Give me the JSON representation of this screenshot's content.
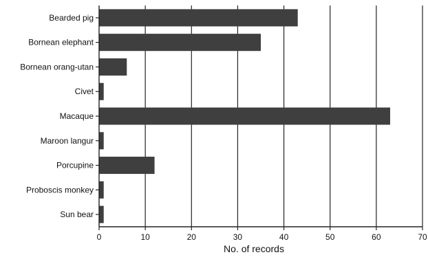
{
  "chart_data": {
    "type": "bar",
    "orientation": "horizontal",
    "categories": [
      "Bearded pig",
      "Bornean elephant",
      "Bornean orang-utan",
      "Civet",
      "Macaque",
      "Maroon langur",
      "Porcupine",
      "Proboscis monkey",
      "Sun bear"
    ],
    "values": [
      43,
      35,
      6,
      1,
      63,
      1,
      12,
      1,
      1
    ],
    "xlabel": "No. of records",
    "ylabel": "",
    "xlim": [
      0,
      70
    ],
    "xticks": [
      "0",
      "10",
      "20",
      "30",
      "40",
      "50",
      "60",
      "70"
    ],
    "grid": "vertical",
    "bar_color": "#3f3f3f",
    "axis_color": "#222222"
  }
}
